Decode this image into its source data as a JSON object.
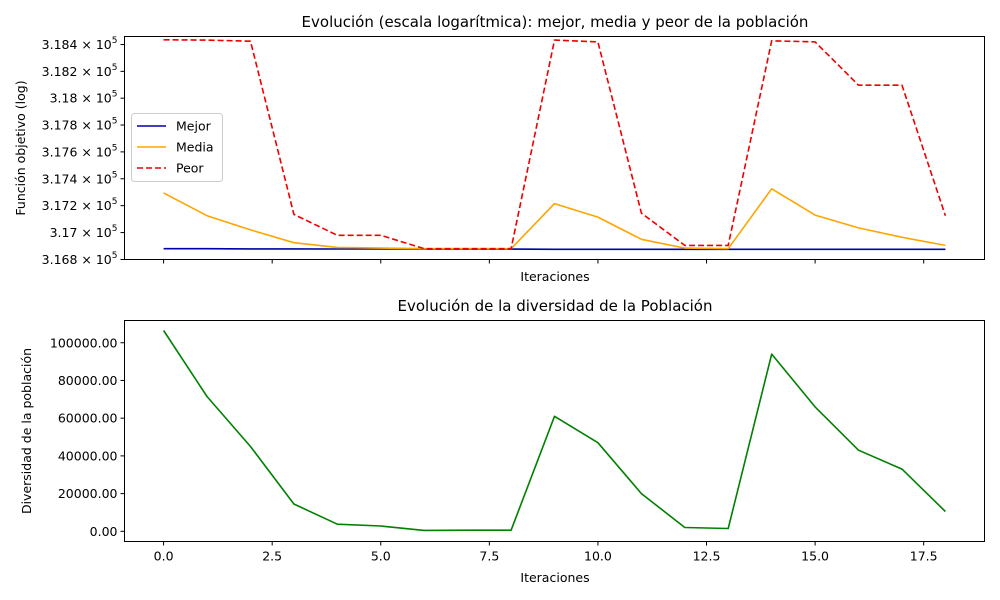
{
  "chart_data": [
    {
      "type": "line",
      "title": "Evolución (escala logarítmica): mejor, media y peor de la población",
      "xlabel": "Iteraciones",
      "ylabel": "Función objetivo (log)",
      "yscale": "log",
      "xlim": [
        -0.9,
        18.9
      ],
      "ylim": [
        316800,
        318460
      ],
      "x_ticks": [
        0,
        2.5,
        5,
        7.5,
        10,
        12.5,
        15,
        17.5
      ],
      "x_tick_labels_visible": false,
      "y_ticks": [
        316800,
        317000,
        317200,
        317400,
        317600,
        317800,
        318000,
        318200,
        318400
      ],
      "y_tick_labels": [
        "3.168",
        "3.17",
        "3.172",
        "3.174",
        "3.176",
        "3.178",
        "3.18",
        "3.182",
        "3.184"
      ],
      "y_tick_suffix": "× 10",
      "y_tick_exponent": "5",
      "legend_position": "center-left",
      "grid": false,
      "x": [
        0,
        1,
        2,
        3,
        4,
        5,
        6,
        7,
        8,
        9,
        10,
        11,
        12,
        13,
        14,
        15,
        16,
        17,
        18
      ],
      "series": [
        {
          "name": "Mejor",
          "color": "#0000aa",
          "dash": "solid",
          "values": [
            316880,
            316880,
            316879,
            316879,
            316878,
            316878,
            316877,
            316877,
            316877,
            316876,
            316876,
            316876,
            316876,
            316876,
            316876,
            316876,
            316876,
            316876,
            316876
          ]
        },
        {
          "name": "Media",
          "color": "#ffa500",
          "dash": "solid",
          "values": [
            317295,
            317125,
            317020,
            316925,
            316890,
            316885,
            316880,
            316880,
            316880,
            317215,
            317115,
            316950,
            316885,
            316880,
            317325,
            317130,
            317035,
            316965,
            316905
          ]
        },
        {
          "name": "Peor",
          "color": "#ee0000",
          "dash": "dashed",
          "values": [
            318435,
            318433,
            318425,
            317135,
            316980,
            316980,
            316880,
            316880,
            316880,
            318433,
            318420,
            317145,
            316905,
            316905,
            318428,
            318420,
            318097,
            318097,
            317125
          ]
        }
      ]
    },
    {
      "type": "line",
      "title": "Evolución de la diversidad de la Población",
      "xlabel": "Iteraciones",
      "ylabel": "Diversidad de la población",
      "xlim": [
        -0.9,
        18.9
      ],
      "ylim": [
        -5400,
        111800
      ],
      "x_ticks": [
        0,
        2.5,
        5,
        7.5,
        10,
        12.5,
        15,
        17.5
      ],
      "x_tick_labels": [
        "0.0",
        "2.5",
        "5.0",
        "7.5",
        "10.0",
        "12.5",
        "15.0",
        "17.5"
      ],
      "y_ticks": [
        0,
        20000,
        40000,
        60000,
        80000,
        100000
      ],
      "y_tick_labels": [
        "0.00",
        "20000.00",
        "40000.00",
        "60000.00",
        "80000.00",
        "100000.00"
      ],
      "grid": false,
      "x": [
        0,
        1,
        2,
        3,
        4,
        5,
        6,
        7,
        8,
        9,
        10,
        11,
        12,
        13,
        14,
        15,
        16,
        17,
        18
      ],
      "series": [
        {
          "color": "#008000",
          "dash": "solid",
          "values": [
            106500,
            71500,
            45000,
            14500,
            3800,
            2800,
            500,
            600,
            600,
            61000,
            47000,
            20000,
            2000,
            1500,
            94000,
            66000,
            43000,
            33000,
            10500
          ]
        }
      ]
    }
  ]
}
